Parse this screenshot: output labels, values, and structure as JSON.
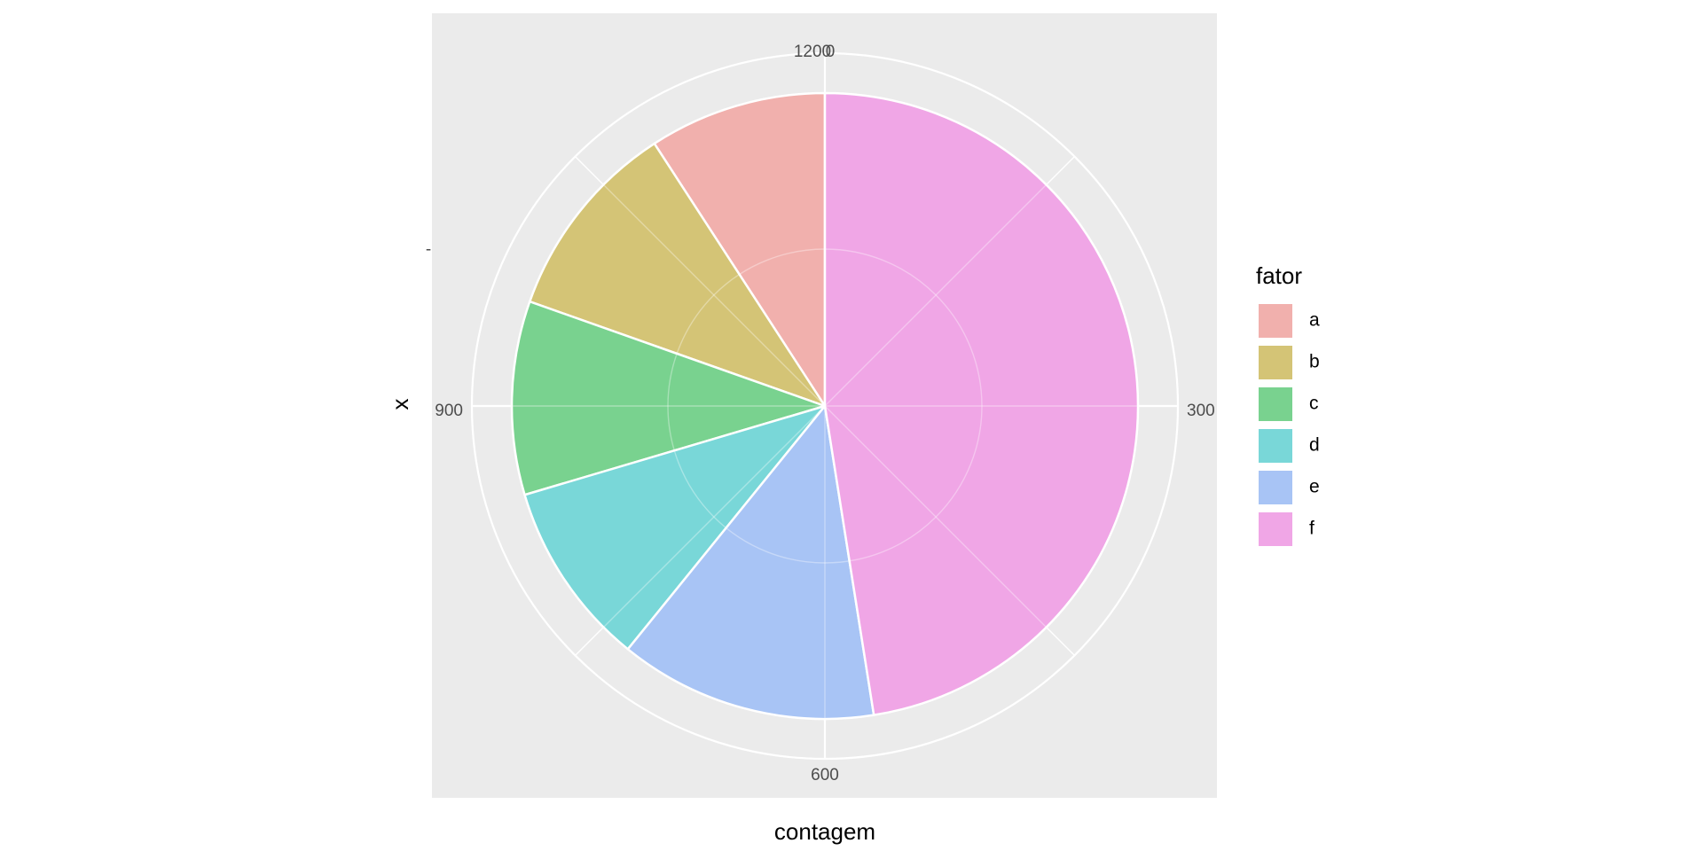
{
  "chart_data": {
    "type": "pie",
    "coord": "polar",
    "xlabel": "contagem",
    "ylabel": "x",
    "y_tick_labels": [
      "-"
    ],
    "theta_range": [
      0,
      1200
    ],
    "theta_ticks": [
      0,
      300,
      600,
      900,
      1200
    ],
    "theta_tick_labels": [
      "0",
      "300",
      "600",
      "900",
      "1200"
    ],
    "grid": true,
    "legend": {
      "title": "fator",
      "position": "right"
    },
    "categories": [
      "a",
      "b",
      "c",
      "d",
      "e",
      "f"
    ],
    "values": [
      110,
      125,
      120,
      115,
      160,
      570
    ],
    "colors": {
      "a": "#F1B0AD",
      "b": "#D4C476",
      "c": "#79D28F",
      "d": "#79D7D8",
      "e": "#A8C4F5",
      "f": "#F0A6E6"
    },
    "panel_background": "#EBEBEB"
  }
}
